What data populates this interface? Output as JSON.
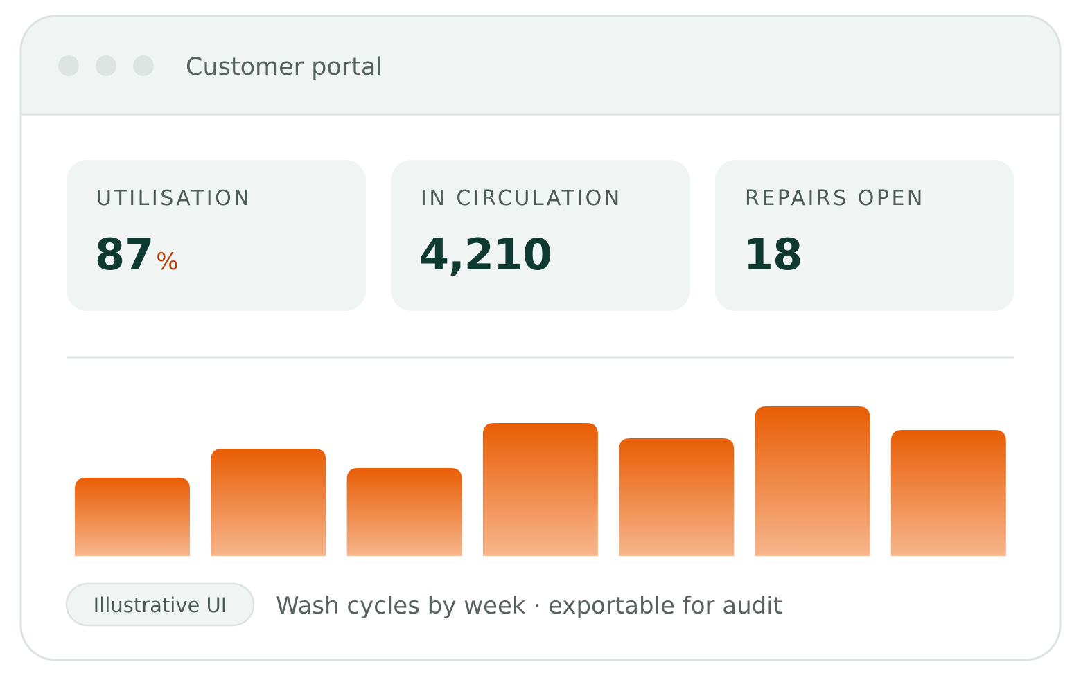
{
  "window": {
    "title": "Customer portal"
  },
  "metrics": [
    {
      "label": "UTILISATION",
      "value": "87",
      "unit": "%"
    },
    {
      "label": "IN CIRCULATION",
      "value": "4,210"
    },
    {
      "label": "REPAIRS OPEN",
      "value": "18"
    }
  ],
  "chart_data": {
    "type": "bar",
    "values": [
      113,
      155,
      127,
      192,
      170,
      216,
      182
    ],
    "ylim": [
      0,
      240
    ],
    "gradient": [
      "#e85d04",
      "#f7b58c"
    ]
  },
  "footer": {
    "badge": "Illustrative UI",
    "caption": "Wash cycles by week · exportable for audit"
  }
}
